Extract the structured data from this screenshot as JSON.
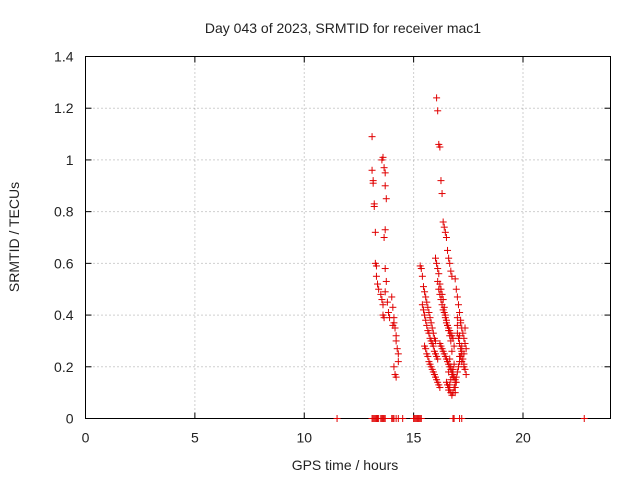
{
  "chart_data": {
    "type": "scatter",
    "title": "Day 043 of 2023, SRMTID for receiver mac1",
    "xlabel": "GPS time / hours",
    "ylabel": "SRMTID / TECUs",
    "xlim": [
      0,
      24
    ],
    "ylim": [
      0,
      1.4
    ],
    "xticks": [
      0,
      5,
      10,
      15,
      20
    ],
    "yticks": [
      0,
      0.2,
      0.4,
      0.6,
      0.8,
      1,
      1.2,
      1.4
    ],
    "ytick_labels": [
      "0",
      "0.2",
      "0.4",
      "0.6",
      "0.8",
      "1",
      "1.2",
      "1.4"
    ],
    "grid": true,
    "marker": "+",
    "marker_color": "#e00000",
    "series": [
      {
        "name": "SRMTID",
        "x": [
          11.5,
          13.1,
          13.15,
          13.2,
          13.25,
          13.3,
          13.35,
          13.4,
          13.5,
          13.55,
          13.6,
          13.65,
          13.7,
          14.0,
          14.05,
          14.1,
          14.2,
          14.3,
          14.5,
          15.0,
          15.05,
          15.1,
          15.15,
          15.2,
          15.25,
          15.3,
          15.35,
          16.8,
          16.85,
          17.1,
          17.2,
          22.8,
          13.1,
          13.1,
          13.15,
          13.15,
          13.2,
          13.2,
          13.25,
          13.25,
          13.3,
          13.3,
          13.35,
          13.4,
          13.5,
          13.55,
          13.6,
          13.6,
          13.65,
          13.7,
          13.75,
          13.7,
          13.8,
          13.85,
          13.9,
          13.55,
          13.6,
          13.65,
          13.7,
          13.7,
          13.75,
          13.7,
          13.65,
          14.0,
          14.05,
          14.1,
          14.1,
          14.15,
          14.2,
          14.2,
          14.25,
          14.3,
          14.3,
          14.1,
          14.15,
          14.2,
          14.05,
          15.3,
          15.35,
          15.4,
          15.45,
          15.5,
          15.55,
          15.6,
          15.65,
          15.7,
          15.75,
          15.8,
          15.85,
          15.9,
          15.95,
          16.0,
          15.4,
          15.45,
          15.5,
          15.55,
          15.6,
          15.65,
          15.7,
          15.75,
          15.8,
          15.85,
          15.9,
          15.95,
          16.0,
          16.05,
          16.1,
          15.5,
          15.55,
          15.6,
          15.65,
          15.7,
          15.75,
          15.8,
          15.85,
          15.9,
          15.95,
          16.0,
          16.05,
          16.1,
          16.15,
          16.2,
          16.05,
          16.1,
          16.15,
          16.2,
          16.25,
          16.3,
          16.35,
          16.4,
          16.45,
          16.5,
          16.55,
          16.6,
          16.65,
          16.7,
          16.75,
          16.1,
          16.15,
          16.2,
          16.25,
          16.3,
          16.35,
          16.4,
          16.45,
          16.5,
          16.55,
          16.6,
          16.65,
          16.7,
          16.75,
          16.8,
          16.2,
          16.25,
          16.3,
          16.35,
          16.4,
          16.45,
          16.5,
          16.55,
          16.6,
          16.65,
          16.7,
          16.75,
          16.8,
          16.85,
          16.9,
          16.5,
          16.55,
          16.6,
          16.65,
          16.7,
          16.75,
          16.8,
          16.85,
          16.9,
          16.95,
          17.0,
          17.05,
          17.1,
          17.15,
          17.2,
          16.9,
          16.95,
          17.0,
          17.05,
          17.1,
          17.15,
          17.2,
          17.25,
          17.3,
          17.35,
          17.4,
          17.0,
          17.1,
          17.2,
          17.3,
          16.0,
          16.05,
          16.1,
          16.15,
          16.2,
          16.25,
          16.3,
          16.35,
          16.4,
          16.45,
          16.5,
          16.55,
          16.6,
          16.65,
          16.7,
          17.0,
          17.05,
          17.1,
          17.15,
          17.2,
          17.25,
          17.3,
          17.35,
          17.4,
          17.1,
          17.2,
          17.3,
          17.35,
          17.0,
          17.15,
          16.6,
          16.65,
          16.7,
          16.75,
          16.8,
          16.85,
          16.9,
          16.95,
          16.6,
          16.7,
          16.8,
          16.9,
          16.65,
          16.75,
          16.85
        ],
        "y": [
          0,
          0,
          0,
          0,
          0,
          0,
          0,
          0,
          0,
          0,
          0,
          0,
          0,
          0,
          0,
          0,
          0,
          0,
          0,
          0,
          0,
          0,
          0,
          0,
          0,
          0,
          0,
          0,
          0,
          0,
          0,
          0,
          1.09,
          0.96,
          0.92,
          0.91,
          0.83,
          0.82,
          0.72,
          0.6,
          0.59,
          0.55,
          0.52,
          0.5,
          0.48,
          0.46,
          0.44,
          0.4,
          0.39,
          0.58,
          0.53,
          0.49,
          0.45,
          0.41,
          0.39,
          1.0,
          1.01,
          0.97,
          0.95,
          0.9,
          0.85,
          0.73,
          0.7,
          0.47,
          0.43,
          0.39,
          0.37,
          0.35,
          0.32,
          0.3,
          0.27,
          0.25,
          0.22,
          0.2,
          0.17,
          0.16,
          0.36,
          0.59,
          0.58,
          0.55,
          0.51,
          0.49,
          0.47,
          0.45,
          0.43,
          0.41,
          0.39,
          0.37,
          0.35,
          0.33,
          0.31,
          0.3,
          0.44,
          0.42,
          0.4,
          0.38,
          0.36,
          0.34,
          0.33,
          0.31,
          0.3,
          0.29,
          0.28,
          0.26,
          0.25,
          0.24,
          0.23,
          0.28,
          0.27,
          0.25,
          0.24,
          0.22,
          0.21,
          0.2,
          0.19,
          0.18,
          0.17,
          0.16,
          0.15,
          0.14,
          0.13,
          0.12,
          1.24,
          1.19,
          1.06,
          1.05,
          0.92,
          0.87,
          0.76,
          0.74,
          0.72,
          0.7,
          0.65,
          0.62,
          0.6,
          0.57,
          0.55,
          0.53,
          0.5,
          0.48,
          0.46,
          0.44,
          0.42,
          0.41,
          0.39,
          0.37,
          0.36,
          0.35,
          0.34,
          0.33,
          0.32,
          0.31,
          0.29,
          0.28,
          0.27,
          0.26,
          0.25,
          0.24,
          0.23,
          0.22,
          0.21,
          0.2,
          0.19,
          0.18,
          0.17,
          0.16,
          0.15,
          0.14,
          0.13,
          0.12,
          0.11,
          0.1,
          0.09,
          0.1,
          0.12,
          0.14,
          0.16,
          0.18,
          0.2,
          0.22,
          0.24,
          0.26,
          0.54,
          0.5,
          0.47,
          0.44,
          0.41,
          0.38,
          0.35,
          0.33,
          0.31,
          0.29,
          0.27,
          0.36,
          0.32,
          0.28,
          0.25,
          0.62,
          0.6,
          0.58,
          0.56,
          0.52,
          0.5,
          0.48,
          0.46,
          0.43,
          0.4,
          0.38,
          0.36,
          0.34,
          0.32,
          0.3,
          0.33,
          0.31,
          0.29,
          0.27,
          0.25,
          0.23,
          0.21,
          0.19,
          0.17,
          0.24,
          0.22,
          0.2,
          0.35,
          0.39,
          0.37,
          0.11,
          0.13,
          0.15,
          0.17,
          0.19,
          0.21,
          0.12,
          0.14,
          0.18,
          0.2,
          0.16,
          0.1,
          0.23,
          0.26,
          0.28
        ]
      }
    ]
  }
}
